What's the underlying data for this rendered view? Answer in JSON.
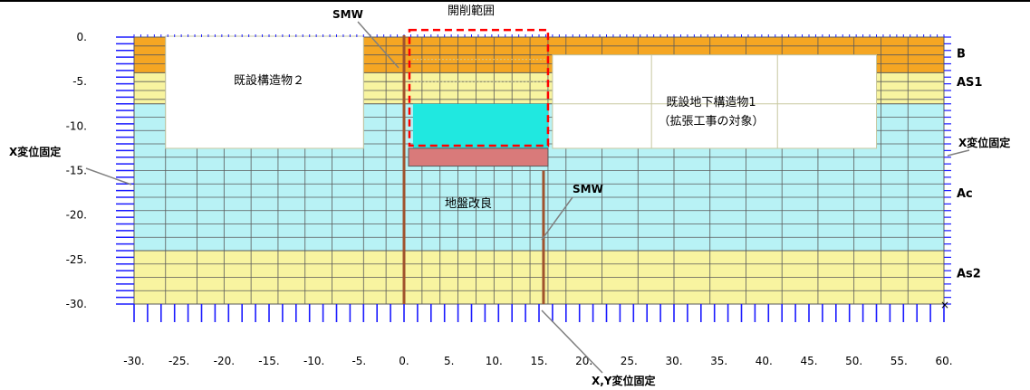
{
  "domain": {
    "x_min": -30,
    "x_max": 60,
    "y_min": -30,
    "y_max": 0
  },
  "x_ticks": [
    {
      "value": -30,
      "label": "-30."
    },
    {
      "value": -25,
      "label": "-25."
    },
    {
      "value": -20,
      "label": "-20."
    },
    {
      "value": -15,
      "label": "-15."
    },
    {
      "value": -10,
      "label": "-10."
    },
    {
      "value": -5,
      "label": "-5."
    },
    {
      "value": 0,
      "label": "0."
    },
    {
      "value": 5,
      "label": "5."
    },
    {
      "value": 10,
      "label": "10."
    },
    {
      "value": 15,
      "label": "15."
    },
    {
      "value": 20,
      "label": "20."
    },
    {
      "value": 25,
      "label": "25."
    },
    {
      "value": 30,
      "label": "30."
    },
    {
      "value": 35,
      "label": "35."
    },
    {
      "value": 40,
      "label": "40."
    },
    {
      "value": 45,
      "label": "45."
    },
    {
      "value": 50,
      "label": "50."
    },
    {
      "value": 55,
      "label": "55."
    },
    {
      "value": 60,
      "label": "60."
    }
  ],
  "y_ticks": [
    {
      "value": 0,
      "label": "0."
    },
    {
      "value": -5,
      "label": "-5."
    },
    {
      "value": -10,
      "label": "-10."
    },
    {
      "value": -15,
      "label": "-15."
    },
    {
      "value": -20,
      "label": "-20."
    },
    {
      "value": -25,
      "label": "-25."
    },
    {
      "value": -30,
      "label": "-30."
    }
  ],
  "layers": [
    {
      "name": "B",
      "top": 0,
      "bottom": -4,
      "color": "#f5a623",
      "grid_step": 1
    },
    {
      "name": "AS1",
      "top": -4,
      "bottom": -7.5,
      "color": "#f8f4a0",
      "grid_step": 1
    },
    {
      "name": "Ac",
      "top": -7.5,
      "bottom": -24,
      "color": "#b8f2f5",
      "grid_step": 1.5
    },
    {
      "name": "As2",
      "top": -24,
      "bottom": -30,
      "color": "#f8f4a0",
      "grid_step": 1.5
    }
  ],
  "layer_labels": [
    {
      "text": "B",
      "y": -1.8
    },
    {
      "text": "AS1",
      "y": -5.0
    },
    {
      "text": "Ac",
      "y": -17.5
    },
    {
      "text": "As2",
      "y": -26.5
    }
  ],
  "grid_columns": [
    -30,
    -26.5,
    -23,
    -20,
    -17,
    -14,
    -11,
    -8,
    -4.5,
    -2,
    0,
    2,
    4,
    6,
    8,
    10,
    12,
    14,
    16,
    18,
    22,
    26,
    30,
    34,
    38,
    42,
    46,
    50,
    53,
    56,
    60
  ],
  "structures": {
    "existing_structure_2": {
      "label": "既設構造物２",
      "x1": -26.5,
      "x2": -4.5,
      "y_top": 0,
      "y_bottom": -12.5
    },
    "existing_underground_structure_1": {
      "label_line1": "既設地下構造物1",
      "label_line2": "（拡張工事の対象）",
      "x1": 16.5,
      "x2": 52.5,
      "y_top": -2,
      "y_bottom": -12.5
    },
    "excavation": {
      "label": "開削範囲",
      "x1": 0.6,
      "x2": 16,
      "y_top": 0.8,
      "y_bottom": -12.2
    },
    "excavation_fill": {
      "x1": 1,
      "x2": 16,
      "y_top": -7.5,
      "y_bottom": -12.5,
      "color": "#20e8e0"
    },
    "ground_improvement": {
      "label": "地盤改良",
      "x1": 0.5,
      "x2": 16,
      "y_top": -12.5,
      "y_bottom": -14.5,
      "color": "#d97a7a"
    }
  },
  "smw_walls": [
    {
      "x": 0,
      "y_top": 0.2,
      "y_bottom": -30
    },
    {
      "x": 15.5,
      "y_top": -15,
      "y_bottom": -30
    }
  ],
  "annotations": {
    "smw_top": "SMW",
    "smw_mid": "SMW",
    "x_fixed_left": "X変位固定",
    "x_fixed_right": "X変位固定",
    "xy_fixed": "X,Y変位固定"
  },
  "colors": {
    "grid": "#5a5a5a",
    "boundary": "#1a1aff",
    "smw": "#a0522d",
    "excavation_border": "#ff0000",
    "structure_line": "#c8c8a0"
  }
}
